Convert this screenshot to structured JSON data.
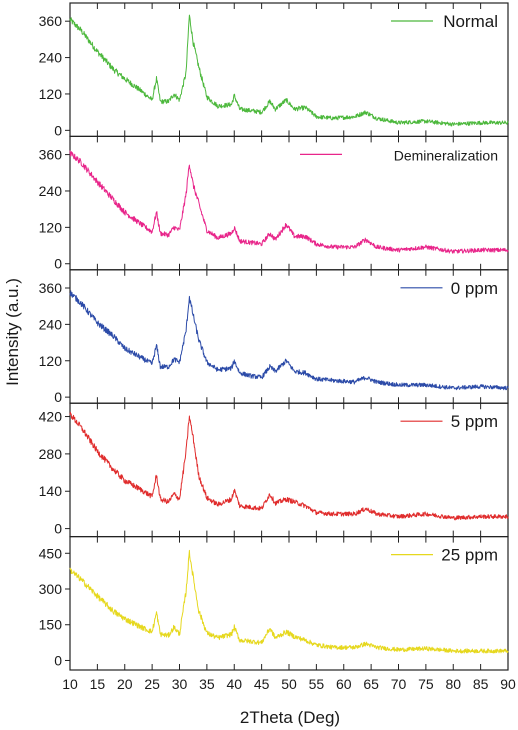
{
  "chart_data": {
    "type": "line",
    "xlabel": "2Theta (Deg)",
    "ylabel": "Intensity (a.u.)",
    "xlim": [
      10,
      90
    ],
    "x_ticks": [
      10,
      15,
      20,
      25,
      30,
      35,
      40,
      45,
      50,
      55,
      60,
      65,
      70,
      75,
      80,
      85,
      90
    ],
    "x_tick_labels": [
      "10",
      "15",
      "20",
      "25",
      "30",
      "35",
      "40",
      "45",
      "50",
      "55",
      "60",
      "65",
      "70",
      "75",
      "80",
      "85",
      "90"
    ],
    "panels": [
      {
        "series": {
          "name": "Normal",
          "color": "#4cb83c",
          "points": [
            [
              10,
              365
            ],
            [
              12,
              330
            ],
            [
              15,
              260
            ],
            [
              18,
              200
            ],
            [
              20,
              170
            ],
            [
              23,
              130
            ],
            [
              25,
              100
            ],
            [
              25.8,
              170
            ],
            [
              26.5,
              95
            ],
            [
              28,
              95
            ],
            [
              29,
              120
            ],
            [
              30,
              100
            ],
            [
              31.2,
              190
            ],
            [
              31.8,
              380
            ],
            [
              32.5,
              290
            ],
            [
              33.5,
              210
            ],
            [
              35,
              110
            ],
            [
              37,
              80
            ],
            [
              39.5,
              85
            ],
            [
              40,
              115
            ],
            [
              41,
              70
            ],
            [
              43,
              65
            ],
            [
              45,
              60
            ],
            [
              46.5,
              95
            ],
            [
              47.5,
              70
            ],
            [
              49.5,
              100
            ],
            [
              51,
              70
            ],
            [
              53,
              75
            ],
            [
              55,
              45
            ],
            [
              58,
              40
            ],
            [
              62,
              45
            ],
            [
              64,
              60
            ],
            [
              66,
              40
            ],
            [
              70,
              25
            ],
            [
              75,
              30
            ],
            [
              80,
              20
            ],
            [
              85,
              25
            ],
            [
              90,
              25
            ]
          ]
        },
        "ylim": [
          -20,
          420
        ],
        "y_ticks": [
          0,
          120,
          240,
          360
        ],
        "y_tick_labels": [
          "0",
          "120",
          "240",
          "360"
        ],
        "legend_position": "top-right"
      },
      {
        "series": {
          "name": "Demineralization",
          "color": "#e8258a",
          "points": [
            [
              10,
              365
            ],
            [
              12,
              335
            ],
            [
              15,
              270
            ],
            [
              18,
              210
            ],
            [
              20,
              170
            ],
            [
              23,
              130
            ],
            [
              25,
              105
            ],
            [
              25.8,
              170
            ],
            [
              26.5,
              100
            ],
            [
              28,
              95
            ],
            [
              29,
              120
            ],
            [
              30,
              110
            ],
            [
              31.2,
              230
            ],
            [
              31.8,
              330
            ],
            [
              32.5,
              260
            ],
            [
              33.5,
              200
            ],
            [
              35,
              110
            ],
            [
              37,
              85
            ],
            [
              39.5,
              100
            ],
            [
              40,
              120
            ],
            [
              41,
              75
            ],
            [
              43,
              70
            ],
            [
              45,
              65
            ],
            [
              46.5,
              100
            ],
            [
              47.5,
              80
            ],
            [
              49.5,
              130
            ],
            [
              51,
              90
            ],
            [
              53,
              90
            ],
            [
              55,
              65
            ],
            [
              58,
              55
            ],
            [
              62,
              55
            ],
            [
              64,
              80
            ],
            [
              66,
              55
            ],
            [
              70,
              45
            ],
            [
              75,
              55
            ],
            [
              80,
              40
            ],
            [
              85,
              45
            ],
            [
              90,
              45
            ]
          ]
        },
        "ylim": [
          -20,
          420
        ],
        "y_ticks": [
          0,
          120,
          240,
          360
        ],
        "y_tick_labels": [
          "0",
          "120",
          "240",
          "360"
        ],
        "legend_position": "top-right"
      },
      {
        "series": {
          "name": "0 ppm",
          "color": "#2c4ba8",
          "points": [
            [
              10,
              345
            ],
            [
              12,
              310
            ],
            [
              15,
              245
            ],
            [
              18,
              200
            ],
            [
              20,
              160
            ],
            [
              23,
              130
            ],
            [
              25,
              110
            ],
            [
              25.8,
              170
            ],
            [
              26.5,
              100
            ],
            [
              28,
              100
            ],
            [
              29,
              125
            ],
            [
              30,
              115
            ],
            [
              31.2,
              220
            ],
            [
              31.8,
              330
            ],
            [
              32.5,
              270
            ],
            [
              33.5,
              190
            ],
            [
              35,
              115
            ],
            [
              37,
              90
            ],
            [
              39.5,
              95
            ],
            [
              40,
              120
            ],
            [
              41,
              80
            ],
            [
              43,
              70
            ],
            [
              45,
              65
            ],
            [
              46.5,
              100
            ],
            [
              47.5,
              85
            ],
            [
              49.5,
              120
            ],
            [
              51,
              85
            ],
            [
              53,
              80
            ],
            [
              55,
              60
            ],
            [
              58,
              55
            ],
            [
              62,
              50
            ],
            [
              64,
              65
            ],
            [
              66,
              50
            ],
            [
              70,
              40
            ],
            [
              75,
              40
            ],
            [
              80,
              30
            ],
            [
              85,
              35
            ],
            [
              90,
              30
            ]
          ]
        },
        "ylim": [
          -20,
          420
        ],
        "y_ticks": [
          0,
          120,
          240,
          360
        ],
        "y_tick_labels": [
          "0",
          "120",
          "240",
          "360"
        ],
        "legend_position": "top-right"
      },
      {
        "series": {
          "name": "5 ppm",
          "color": "#e02c2c",
          "points": [
            [
              10,
              430
            ],
            [
              12,
              380
            ],
            [
              15,
              290
            ],
            [
              18,
              220
            ],
            [
              20,
              180
            ],
            [
              23,
              145
            ],
            [
              25,
              120
            ],
            [
              25.8,
              200
            ],
            [
              26.5,
              110
            ],
            [
              28,
              100
            ],
            [
              29,
              130
            ],
            [
              30,
              110
            ],
            [
              31.2,
              290
            ],
            [
              31.8,
              420
            ],
            [
              32.5,
              340
            ],
            [
              33.5,
              200
            ],
            [
              35,
              115
            ],
            [
              37,
              90
            ],
            [
              39.5,
              110
            ],
            [
              40,
              145
            ],
            [
              41,
              85
            ],
            [
              43,
              80
            ],
            [
              45,
              75
            ],
            [
              46.5,
              130
            ],
            [
              47.5,
              95
            ],
            [
              49.5,
              110
            ],
            [
              51,
              100
            ],
            [
              53,
              85
            ],
            [
              55,
              60
            ],
            [
              58,
              55
            ],
            [
              62,
              55
            ],
            [
              64,
              75
            ],
            [
              66,
              55
            ],
            [
              70,
              45
            ],
            [
              75,
              55
            ],
            [
              80,
              40
            ],
            [
              85,
              45
            ],
            [
              90,
              45
            ]
          ]
        },
        "ylim": [
          -30,
          470
        ],
        "y_ticks": [
          0,
          140,
          280,
          420
        ],
        "y_tick_labels": [
          "0",
          "140",
          "280",
          "420"
        ],
        "legend_position": "top-right"
      },
      {
        "series": {
          "name": "25 ppm",
          "color": "#e6d81e",
          "points": [
            [
              10,
              380
            ],
            [
              12,
              340
            ],
            [
              15,
              270
            ],
            [
              18,
              205
            ],
            [
              20,
              175
            ],
            [
              23,
              140
            ],
            [
              25,
              120
            ],
            [
              25.8,
              200
            ],
            [
              26.5,
              110
            ],
            [
              28,
              105
            ],
            [
              29,
              140
            ],
            [
              30,
              110
            ],
            [
              31.2,
              290
            ],
            [
              31.8,
              455
            ],
            [
              32.5,
              350
            ],
            [
              33.5,
              210
            ],
            [
              35,
              115
            ],
            [
              37,
              95
            ],
            [
              39.5,
              110
            ],
            [
              40,
              140
            ],
            [
              41,
              85
            ],
            [
              43,
              80
            ],
            [
              45,
              75
            ],
            [
              46.5,
              135
            ],
            [
              47.5,
              95
            ],
            [
              49.5,
              120
            ],
            [
              51,
              100
            ],
            [
              53,
              85
            ],
            [
              55,
              65
            ],
            [
              58,
              55
            ],
            [
              62,
              55
            ],
            [
              64,
              70
            ],
            [
              66,
              55
            ],
            [
              70,
              45
            ],
            [
              75,
              50
            ],
            [
              80,
              40
            ],
            [
              85,
              40
            ],
            [
              90,
              40
            ]
          ]
        },
        "ylim": [
          -40,
          520
        ],
        "y_ticks": [
          0,
          150,
          300,
          450
        ],
        "y_tick_labels": [
          "0",
          "150",
          "300",
          "450"
        ],
        "legend_position": "top-right"
      }
    ]
  }
}
